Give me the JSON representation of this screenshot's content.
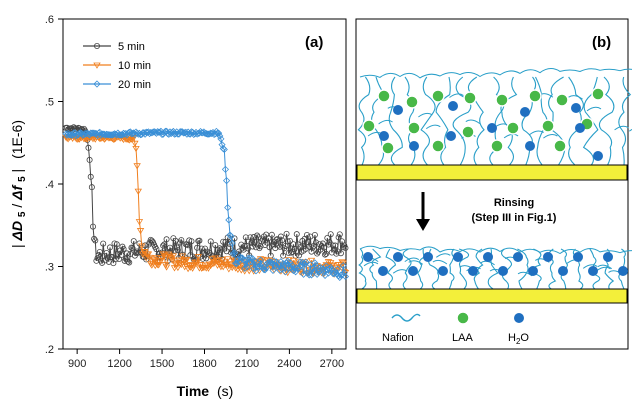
{
  "chart_data": [
    {
      "type": "line",
      "panel_label": "(a)",
      "xlabel_main": "Time",
      "xlabel_unit": "(s)",
      "ylabel": "|ΔD5/Δf5| (1E-6)",
      "ylabel_parts": {
        "pre": "|",
        "D": "ΔD",
        "Dsub": "5",
        "slash": "/",
        "f": "Δf",
        "fsub": "5",
        "post": "|",
        "unit": "(1E-6)"
      },
      "xlim": [
        800,
        2800
      ],
      "ylim": [
        0.2,
        0.6
      ],
      "xticks": [
        "900",
        "1200",
        "1500",
        "1800",
        "2100",
        "2400",
        "2700"
      ],
      "xtick_values": [
        900,
        1200,
        1500,
        1800,
        2100,
        2400,
        2700
      ],
      "yticks": [
        ".2",
        ".3",
        ".4",
        ".5",
        ".6"
      ],
      "ytick_values": [
        0.2,
        0.3,
        0.4,
        0.5,
        0.6
      ],
      "legend_placement": "top-left",
      "grid": false,
      "series": [
        {
          "name": "5 min",
          "color": "#444444",
          "marker": "circle",
          "points": [
            [
              820,
              0.468
            ],
            [
              900,
              0.467
            ],
            [
              960,
              0.466
            ],
            [
              985,
              0.44
            ],
            [
              1005,
              0.38
            ],
            [
              1025,
              0.32
            ],
            [
              1045,
              0.312
            ],
            [
              1100,
              0.315
            ],
            [
              1300,
              0.318
            ],
            [
              1500,
              0.32
            ],
            [
              1800,
              0.322
            ],
            [
              2100,
              0.324
            ],
            [
              2400,
              0.326
            ],
            [
              2700,
              0.328
            ],
            [
              2800,
              0.33
            ]
          ]
        },
        {
          "name": "10 min",
          "color": "#f07f1e",
          "marker": "triangle-down",
          "points": [
            [
              820,
              0.456
            ],
            [
              1000,
              0.456
            ],
            [
              1200,
              0.456
            ],
            [
              1300,
              0.455
            ],
            [
              1320,
              0.44
            ],
            [
              1340,
              0.36
            ],
            [
              1360,
              0.32
            ],
            [
              1420,
              0.31
            ],
            [
              1600,
              0.306
            ],
            [
              1900,
              0.304
            ],
            [
              2200,
              0.302
            ],
            [
              2500,
              0.3
            ],
            [
              2800,
              0.298
            ]
          ]
        },
        {
          "name": "20 min",
          "color": "#3a8fd6",
          "marker": "diamond",
          "points": [
            [
              820,
              0.46
            ],
            [
              1200,
              0.461
            ],
            [
              1500,
              0.462
            ],
            [
              1800,
              0.462
            ],
            [
              1900,
              0.462
            ],
            [
              1940,
              0.44
            ],
            [
              1975,
              0.35
            ],
            [
              2010,
              0.31
            ],
            [
              2100,
              0.303
            ],
            [
              2300,
              0.301
            ],
            [
              2500,
              0.298
            ],
            [
              2700,
              0.296
            ],
            [
              2800,
              0.293
            ]
          ]
        }
      ]
    },
    {
      "type": "diagram",
      "panel_label": "(b)",
      "arrow_label_line1": "Rinsing",
      "arrow_label_line2": "(Step III in Fig.1)",
      "legend": {
        "nafion": "Nafion",
        "laa": "LAA",
        "h2o_main": "H",
        "h2o_sub": "2",
        "h2o_end": "O"
      },
      "colors": {
        "nafion": "#2a9fc9",
        "laa": "#48b848",
        "h2o": "#1f6fc0",
        "substrate": "#f3ef3a"
      }
    }
  ]
}
